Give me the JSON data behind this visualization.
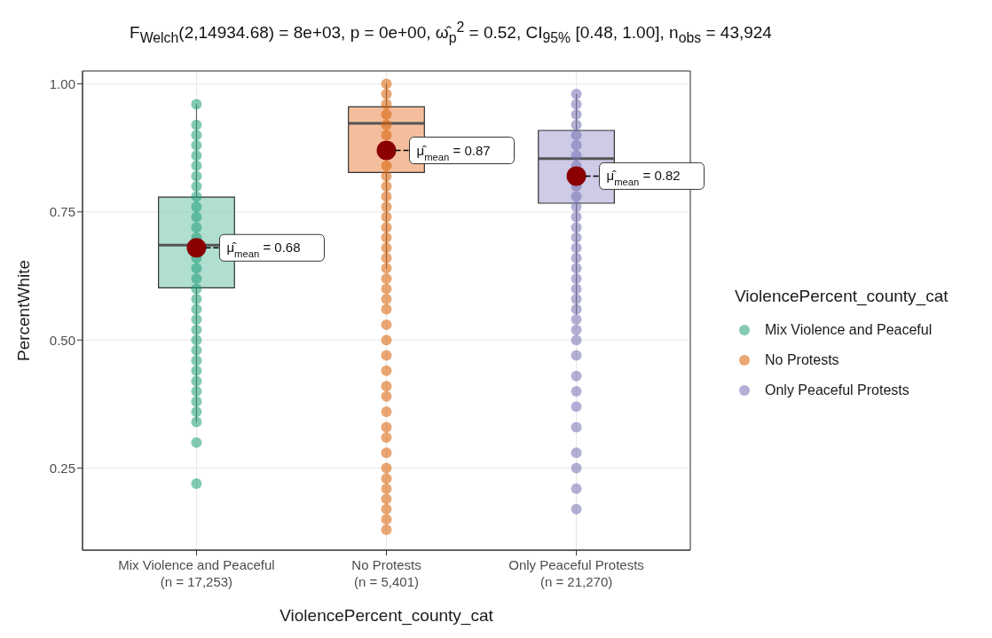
{
  "chart_data": {
    "type": "box",
    "title": "F$_{Welch}$(2,14934.68) = 8e+03, p = 0e+00, ω̂$_{p}$$^{2}$ = 0.52, CI$_{95%}$ [0.48, 1.00], n$_{obs}$ = 43,924",
    "xlabel": "ViolencePercent_county_cat",
    "ylabel": "PercentWhite",
    "legend_title": "ViolencePercent_county_cat",
    "categories": [
      "Mix Violence and Peaceful\n(n = 17,253)",
      "No Protests\n(n = 5,401)",
      "Only Peaceful Protests\n(n = 21,270)"
    ],
    "colors": [
      "#8fd0bc",
      "#f0a273",
      "#b8b5dc"
    ],
    "boxes": [
      {
        "low": 0.34,
        "q1": 0.602,
        "median": 0.685,
        "q3": 0.779,
        "high": 0.96,
        "mean": 0.68
      },
      {
        "low": 0.64,
        "q1": 0.827,
        "median": 0.923,
        "q3": 0.955,
        "high": 1.0,
        "mean": 0.87
      },
      {
        "low": 0.55,
        "q1": 0.767,
        "median": 0.854,
        "q3": 0.909,
        "high": 0.98,
        "mean": 0.82
      }
    ],
    "series": [
      {
        "name": "Mix Violence and Peaceful",
        "type": "scatter",
        "color": "#1b9e77",
        "x": [
          "Mix Violence and Peaceful\n(n = 17,253)",
          "Mix Violence and Peaceful\n(n = 17,253)",
          "Mix Violence and Peaceful\n(n = 17,253)",
          "Mix Violence and Peaceful\n(n = 17,253)",
          "Mix Violence and Peaceful\n(n = 17,253)",
          "Mix Violence and Peaceful\n(n = 17,253)",
          "Mix Violence and Peaceful\n(n = 17,253)",
          "Mix Violence and Peaceful\n(n = 17,253)",
          "Mix Violence and Peaceful\n(n = 17,253)",
          "Mix Violence and Peaceful\n(n = 17,253)",
          "Mix Violence and Peaceful\n(n = 17,253)",
          "Mix Violence and Peaceful\n(n = 17,253)",
          "Mix Violence and Peaceful\n(n = 17,253)",
          "Mix Violence and Peaceful\n(n = 17,253)",
          "Mix Violence and Peaceful\n(n = 17,253)",
          "Mix Violence and Peaceful\n(n = 17,253)",
          "Mix Violence and Peaceful\n(n = 17,253)",
          "Mix Violence and Peaceful\n(n = 17,253)",
          "Mix Violence and Peaceful\n(n = 17,253)",
          "Mix Violence and Peaceful\n(n = 17,253)",
          "Mix Violence and Peaceful\n(n = 17,253)",
          "Mix Violence and Peaceful\n(n = 17,253)",
          "Mix Violence and Peaceful\n(n = 17,253)",
          "Mix Violence and Peaceful\n(n = 17,253)",
          "Mix Violence and Peaceful\n(n = 17,253)",
          "Mix Violence and Peaceful\n(n = 17,253)",
          "Mix Violence and Peaceful\n(n = 17,253)",
          "Mix Violence and Peaceful\n(n = 17,253)",
          "Mix Violence and Peaceful\n(n = 17,253)",
          "Mix Violence and Peaceful\n(n = 17,253)",
          "Mix Violence and Peaceful\n(n = 17,253)",
          "Mix Violence and Peaceful\n(n = 17,253)",
          "Mix Violence and Peaceful\n(n = 17,253)"
        ],
        "values": [
          0.96,
          0.92,
          0.9,
          0.88,
          0.86,
          0.84,
          0.82,
          0.8,
          0.78,
          0.76,
          0.74,
          0.72,
          0.7,
          null,
          0.66,
          0.64,
          0.62,
          0.6,
          0.58,
          0.56,
          0.54,
          0.52,
          0.5,
          0.48,
          0.46,
          0.44,
          0.42,
          0.4,
          0.38,
          0.36,
          0.34,
          0.3,
          0.22
        ]
      },
      {
        "name": "No Protests",
        "type": "scatter",
        "color": "#d95f02",
        "x": [
          "No Protests\n(n = 5,401)",
          "No Protests\n(n = 5,401)",
          "No Protests\n(n = 5,401)",
          "No Protests\n(n = 5,401)",
          "No Protests\n(n = 5,401)",
          "No Protests\n(n = 5,401)",
          "No Protests\n(n = 5,401)",
          "No Protests\n(n = 5,401)",
          "No Protests\n(n = 5,401)",
          "No Protests\n(n = 5,401)",
          "No Protests\n(n = 5,401)",
          "No Protests\n(n = 5,401)",
          "No Protests\n(n = 5,401)",
          "No Protests\n(n = 5,401)",
          "No Protests\n(n = 5,401)",
          "No Protests\n(n = 5,401)",
          "No Protests\n(n = 5,401)",
          "No Protests\n(n = 5,401)",
          "No Protests\n(n = 5,401)",
          "No Protests\n(n = 5,401)",
          "No Protests\n(n = 5,401)",
          "No Protests\n(n = 5,401)",
          "No Protests\n(n = 5,401)",
          "No Protests\n(n = 5,401)",
          "No Protests\n(n = 5,401)",
          "No Protests\n(n = 5,401)",
          "No Protests\n(n = 5,401)",
          "No Protests\n(n = 5,401)",
          "No Protests\n(n = 5,401)",
          "No Protests\n(n = 5,401)",
          "No Protests\n(n = 5,401)",
          "No Protests\n(n = 5,401)",
          "No Protests\n(n = 5,401)",
          "No Protests\n(n = 5,401)",
          "No Protests\n(n = 5,401)",
          "No Protests\n(n = 5,401)",
          "No Protests\n(n = 5,401)",
          "No Protests\n(n = 5,401)",
          "No Protests\n(n = 5,401)",
          "No Protests\n(n = 5,401)"
        ],
        "values": [
          1.0,
          0.98,
          0.96,
          0.94,
          0.92,
          0.9,
          null,
          null,
          0.84,
          0.82,
          0.8,
          0.78,
          0.76,
          0.74,
          0.72,
          0.7,
          0.68,
          0.66,
          0.64,
          0.62,
          0.6,
          0.58,
          0.56,
          0.53,
          0.5,
          0.47,
          0.44,
          0.41,
          0.39,
          0.36,
          0.33,
          0.31,
          0.28,
          0.25,
          0.23,
          0.21,
          0.19,
          0.17,
          0.15,
          0.13
        ]
      },
      {
        "name": "Only Peaceful Protests",
        "type": "scatter",
        "color": "#7570b3",
        "x": [
          "Only Peaceful Protests\n(n = 21,270)",
          "Only Peaceful Protests\n(n = 21,270)",
          "Only Peaceful Protests\n(n = 21,270)",
          "Only Peaceful Protests\n(n = 21,270)",
          "Only Peaceful Protests\n(n = 21,270)",
          "Only Peaceful Protests\n(n = 21,270)",
          "Only Peaceful Protests\n(n = 21,270)",
          "Only Peaceful Protests\n(n = 21,270)",
          "Only Peaceful Protests\n(n = 21,270)",
          "Only Peaceful Protests\n(n = 21,270)",
          "Only Peaceful Protests\n(n = 21,270)",
          "Only Peaceful Protests\n(n = 21,270)",
          "Only Peaceful Protests\n(n = 21,270)",
          "Only Peaceful Protests\n(n = 21,270)",
          "Only Peaceful Protests\n(n = 21,270)",
          "Only Peaceful Protests\n(n = 21,270)",
          "Only Peaceful Protests\n(n = 21,270)",
          "Only Peaceful Protests\n(n = 21,270)",
          "Only Peaceful Protests\n(n = 21,270)",
          "Only Peaceful Protests\n(n = 21,270)",
          "Only Peaceful Protests\n(n = 21,270)",
          "Only Peaceful Protests\n(n = 21,270)",
          "Only Peaceful Protests\n(n = 21,270)",
          "Only Peaceful Protests\n(n = 21,270)",
          "Only Peaceful Protests\n(n = 21,270)",
          "Only Peaceful Protests\n(n = 21,270)",
          "Only Peaceful Protests\n(n = 21,270)",
          "Only Peaceful Protests\n(n = 21,270)",
          "Only Peaceful Protests\n(n = 21,270)",
          "Only Peaceful Protests\n(n = 21,270)",
          "Only Peaceful Protests\n(n = 21,270)",
          "Only Peaceful Protests\n(n = 21,270)",
          "Only Peaceful Protests\n(n = 21,270)",
          "Only Peaceful Protests\n(n = 21,270)"
        ],
        "values": [
          0.98,
          0.96,
          0.94,
          0.92,
          0.9,
          0.88,
          0.86,
          0.84,
          null,
          0.8,
          0.78,
          0.76,
          0.74,
          0.72,
          0.7,
          0.68,
          0.66,
          0.64,
          0.62,
          0.6,
          0.58,
          0.56,
          0.54,
          0.52,
          0.5,
          0.47,
          0.43,
          0.4,
          0.37,
          0.33,
          0.28,
          0.25,
          0.21,
          0.17
        ]
      }
    ],
    "annotations": [
      "μ̂$_{mean}$ = 0.68",
      "μ̂$_{mean}$ = 0.87",
      "μ̂$_{mean}$ = 0.82"
    ],
    "ylim": [
      0.09,
      1.025
    ],
    "yticks": [
      {
        "value": 0.25,
        "label": "0.25"
      },
      {
        "value": 0.5,
        "label": "0.50"
      },
      {
        "value": 0.75,
        "label": "0.75"
      },
      {
        "value": 1,
        "label": "1.00"
      }
    ],
    "grid": true,
    "legend": "right",
    "marker": "circle"
  }
}
